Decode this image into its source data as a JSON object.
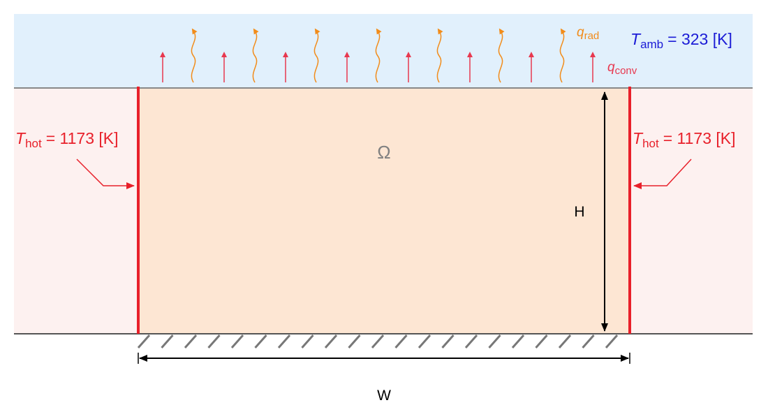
{
  "labels": {
    "q_rad": {
      "symbol": "q",
      "subscript": "rad"
    },
    "t_amb": {
      "symbol": "T",
      "subscript": "amb",
      "text": "= 323 [K]"
    },
    "q_conv": {
      "symbol": "q",
      "subscript": "conv"
    },
    "t_hot_left": {
      "symbol": "T",
      "subscript": "hot",
      "text": "= 1173 [K]"
    },
    "t_hot_right": {
      "symbol": "T",
      "subscript": "hot",
      "text": "= 1173 [K]"
    },
    "domain": "Ω",
    "height": "H",
    "width": "W"
  }
}
